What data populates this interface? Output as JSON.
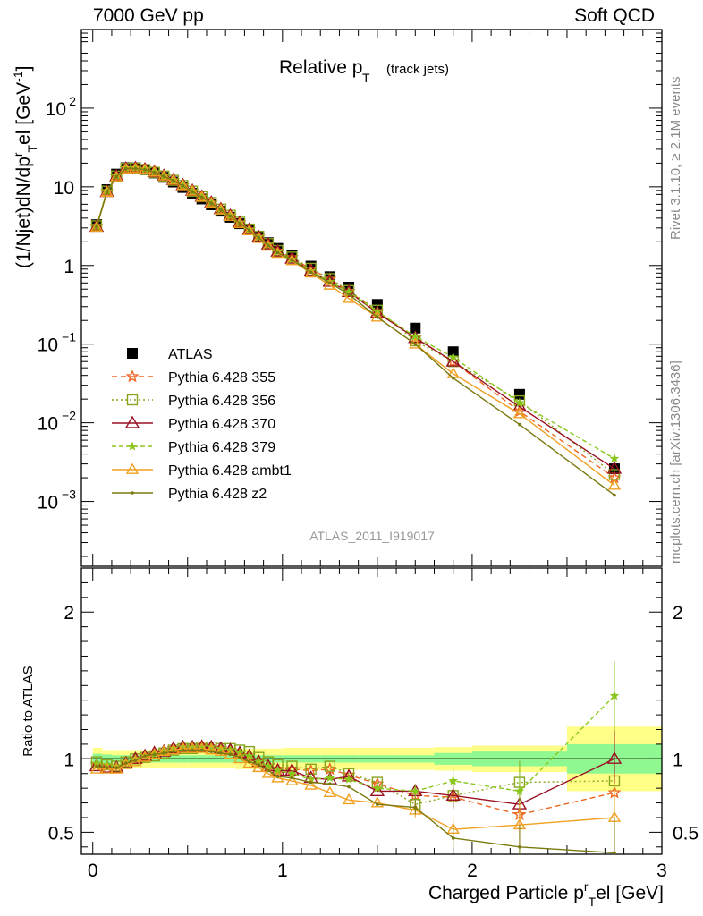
{
  "header": {
    "energy": "7000 GeV pp",
    "process": "Soft QCD"
  },
  "side_labels": {
    "rivet": "Rivet 3.1.10, ≥ 2.1M events",
    "mcplots": "mcplots.cern.ch [arXiv:1306.3436]"
  },
  "chart_data": [
    {
      "type": "line",
      "panel": "main",
      "title": "Relative p",
      "title_sub": "T",
      "title_suffix": "(track jets)",
      "ylabel": "(1/Njet)dN/dp",
      "ylabel_sup": "r",
      "ylabel_sub": "T",
      "ylabel_tail": "el [GeV",
      "ylabel_unit_sup": "-1",
      "ylabel_close": "]",
      "yscale": "log",
      "ylim": [
        0.00015,
        1000
      ],
      "xlim": [
        -0.06,
        3.0
      ],
      "y_ticks": [
        {
          "v": 0.001,
          "base": "10",
          "exp": "−3"
        },
        {
          "v": 0.01,
          "base": "10",
          "exp": "−2"
        },
        {
          "v": 0.1,
          "base": "10",
          "exp": "−1"
        },
        {
          "v": 1,
          "base": "1",
          "exp": ""
        },
        {
          "v": 10,
          "base": "10",
          "exp": ""
        },
        {
          "v": 100,
          "base": "10",
          "exp": "2"
        }
      ],
      "watermark": "ATLAS_2011_I919017",
      "x": [
        0.02,
        0.075,
        0.125,
        0.175,
        0.225,
        0.275,
        0.325,
        0.375,
        0.425,
        0.475,
        0.525,
        0.575,
        0.625,
        0.675,
        0.725,
        0.775,
        0.825,
        0.875,
        0.925,
        0.975,
        1.05,
        1.15,
        1.25,
        1.35,
        1.5,
        1.7,
        1.9,
        2.25,
        2.75
      ],
      "series": [
        {
          "name": "ATLAS",
          "color": "#000000",
          "marker": "square",
          "dash": "",
          "values": [
            3.3,
            9.2,
            14.5,
            17.5,
            17.5,
            16.5,
            15.0,
            13.2,
            11.5,
            9.8,
            8.3,
            7.0,
            5.9,
            4.9,
            4.1,
            3.4,
            2.85,
            2.35,
            1.95,
            1.65,
            1.35,
            0.98,
            0.72,
            0.53,
            0.32,
            0.16,
            0.08,
            0.023,
            0.0026
          ]
        },
        {
          "name": "Pythia 6.428 355",
          "color": "#ee6622",
          "marker": "star",
          "dash": "6,4",
          "values": [
            3.15,
            8.7,
            13.5,
            17.0,
            17.2,
            16.5,
            15.2,
            13.6,
            12.0,
            10.3,
            8.7,
            7.4,
            6.2,
            5.1,
            4.3,
            3.5,
            2.85,
            2.3,
            1.85,
            1.53,
            1.26,
            0.9,
            0.67,
            0.47,
            0.26,
            0.12,
            0.06,
            0.014,
            0.002
          ]
        },
        {
          "name": "Pythia 6.428 356",
          "color": "#88a61c",
          "marker": "opensquare",
          "dash": "2,3",
          "values": [
            3.2,
            8.8,
            13.7,
            17.2,
            17.3,
            16.6,
            15.3,
            13.7,
            12.1,
            10.4,
            8.8,
            7.5,
            6.3,
            5.2,
            4.35,
            3.55,
            2.9,
            2.35,
            1.9,
            1.55,
            1.28,
            0.92,
            0.68,
            0.48,
            0.27,
            0.11,
            0.06,
            0.019,
            0.0022
          ]
        },
        {
          "name": "Pythia 6.428 370",
          "color": "#991122",
          "marker": "triangle",
          "dash": "",
          "values": [
            3.1,
            8.6,
            13.6,
            17.1,
            17.3,
            16.7,
            15.4,
            13.8,
            12.2,
            10.5,
            8.9,
            7.5,
            6.3,
            5.2,
            4.3,
            3.5,
            2.85,
            2.3,
            1.85,
            1.5,
            1.22,
            0.85,
            0.62,
            0.46,
            0.25,
            0.12,
            0.06,
            0.016,
            0.0026
          ]
        },
        {
          "name": "Pythia 6.428 379",
          "color": "#8ac61c",
          "marker": "smallstar",
          "dash": "5,3",
          "values": [
            3.2,
            8.9,
            13.8,
            17.3,
            17.4,
            16.7,
            15.4,
            13.7,
            12.1,
            10.4,
            8.8,
            7.5,
            6.3,
            5.2,
            4.3,
            3.5,
            2.85,
            2.3,
            1.85,
            1.5,
            1.2,
            0.85,
            0.62,
            0.46,
            0.26,
            0.125,
            0.068,
            0.018,
            0.0035
          ]
        },
        {
          "name": "Pythia 6.428 ambt1",
          "color": "#f0a020",
          "marker": "opentriangle",
          "dash": "",
          "values": [
            3.05,
            8.5,
            13.3,
            16.8,
            17.0,
            16.5,
            15.3,
            13.7,
            12.1,
            10.4,
            8.8,
            7.4,
            6.2,
            5.1,
            4.2,
            3.4,
            2.75,
            2.2,
            1.75,
            1.42,
            1.15,
            0.8,
            0.56,
            0.38,
            0.22,
            0.1,
            0.042,
            0.013,
            0.0016
          ]
        },
        {
          "name": "Pythia 6.428 z2",
          "color": "#7a7a10",
          "marker": "dot",
          "dash": "",
          "values": [
            3.1,
            8.6,
            13.5,
            17.0,
            17.1,
            16.5,
            15.3,
            13.6,
            12.0,
            10.3,
            8.7,
            7.4,
            6.2,
            5.1,
            4.25,
            3.45,
            2.8,
            2.25,
            1.8,
            1.45,
            1.18,
            0.82,
            0.6,
            0.43,
            0.22,
            0.1,
            0.037,
            0.0095,
            0.0012
          ]
        }
      ]
    },
    {
      "type": "line",
      "panel": "ratio",
      "ylabel": "Ratio to ATLAS",
      "xlabel": "Charged Particle p",
      "xlabel_sup": "r",
      "xlabel_sub": "T",
      "xlabel_tail": "el [GeV]",
      "ylim": [
        0.35,
        2.3
      ],
      "xlim": [
        -0.06,
        3.0
      ],
      "x_ticks": [
        "0",
        "1",
        "2",
        "3"
      ],
      "y_ticks": [
        "0.5",
        "1",
        "2"
      ],
      "band_edges": [
        0.0,
        0.05,
        0.1,
        0.15,
        0.2,
        0.25,
        0.3,
        0.35,
        0.4,
        0.45,
        0.5,
        0.55,
        0.6,
        0.65,
        0.7,
        0.75,
        0.8,
        0.85,
        0.9,
        0.95,
        1.0,
        1.1,
        1.2,
        1.3,
        1.4,
        1.6,
        1.8,
        2.0,
        2.5,
        3.0
      ],
      "band_inner": [
        0.035,
        0.03,
        0.025,
        0.025,
        0.025,
        0.025,
        0.025,
        0.025,
        0.025,
        0.025,
        0.025,
        0.025,
        0.025,
        0.025,
        0.025,
        0.025,
        0.025,
        0.025,
        0.025,
        0.025,
        0.025,
        0.025,
        0.025,
        0.025,
        0.025,
        0.025,
        0.04,
        0.05,
        0.1
      ],
      "band_outer": [
        0.075,
        0.06,
        0.06,
        0.06,
        0.06,
        0.06,
        0.06,
        0.06,
        0.06,
        0.06,
        0.06,
        0.06,
        0.065,
        0.065,
        0.065,
        0.07,
        0.07,
        0.07,
        0.07,
        0.07,
        0.075,
        0.075,
        0.075,
        0.075,
        0.075,
        0.075,
        0.08,
        0.09,
        0.22
      ],
      "series": [
        {
          "name": "Pythia 6.428 355",
          "values": [
            0.96,
            0.95,
            0.94,
            0.97,
            1.0,
            1.02,
            1.03,
            1.05,
            1.07,
            1.08,
            1.08,
            1.09,
            1.08,
            1.07,
            1.06,
            1.04,
            1.02,
            0.98,
            0.95,
            0.93,
            0.93,
            0.92,
            0.93,
            0.89,
            0.83,
            0.75,
            0.74,
            0.62,
            0.77
          ]
        },
        {
          "name": "Pythia 6.428 356",
          "values": [
            0.98,
            0.96,
            0.95,
            0.98,
            1.0,
            1.01,
            1.02,
            1.04,
            1.06,
            1.07,
            1.07,
            1.08,
            1.08,
            1.07,
            1.07,
            1.06,
            1.05,
            1.01,
            0.98,
            0.96,
            0.95,
            0.93,
            0.95,
            0.9,
            0.84,
            0.69,
            0.75,
            0.84,
            0.85
          ]
        },
        {
          "name": "Pythia 6.428 370",
          "values": [
            0.95,
            0.94,
            0.94,
            0.97,
            1.0,
            1.02,
            1.04,
            1.05,
            1.07,
            1.08,
            1.08,
            1.08,
            1.08,
            1.07,
            1.06,
            1.04,
            1.02,
            0.98,
            0.95,
            0.92,
            0.92,
            0.87,
            0.86,
            0.88,
            0.78,
            0.78,
            0.75,
            0.69,
            1.0
          ]
        },
        {
          "name": "Pythia 6.428 379",
          "values": [
            0.97,
            0.96,
            0.95,
            0.98,
            1.0,
            1.02,
            1.03,
            1.05,
            1.07,
            1.08,
            1.08,
            1.08,
            1.08,
            1.07,
            1.06,
            1.04,
            1.02,
            0.98,
            0.95,
            0.92,
            0.9,
            0.86,
            0.87,
            0.86,
            0.8,
            0.78,
            0.85,
            0.78,
            1.43
          ]
        },
        {
          "name": "Pythia 6.428 ambt1",
          "values": [
            0.93,
            0.93,
            0.93,
            0.96,
            0.98,
            1.01,
            1.03,
            1.05,
            1.06,
            1.07,
            1.07,
            1.07,
            1.06,
            1.05,
            1.03,
            1.0,
            0.97,
            0.94,
            0.9,
            0.87,
            0.85,
            0.82,
            0.77,
            0.72,
            0.7,
            0.65,
            0.52,
            0.55,
            0.6
          ]
        },
        {
          "name": "Pythia 6.428 z2",
          "values": [
            0.95,
            0.94,
            0.94,
            0.97,
            0.99,
            1.02,
            1.03,
            1.04,
            1.05,
            1.06,
            1.06,
            1.06,
            1.05,
            1.04,
            1.03,
            1.01,
            0.98,
            0.96,
            0.92,
            0.88,
            0.87,
            0.84,
            0.83,
            0.81,
            0.69,
            0.67,
            0.46,
            0.4,
            0.36
          ]
        }
      ]
    }
  ]
}
